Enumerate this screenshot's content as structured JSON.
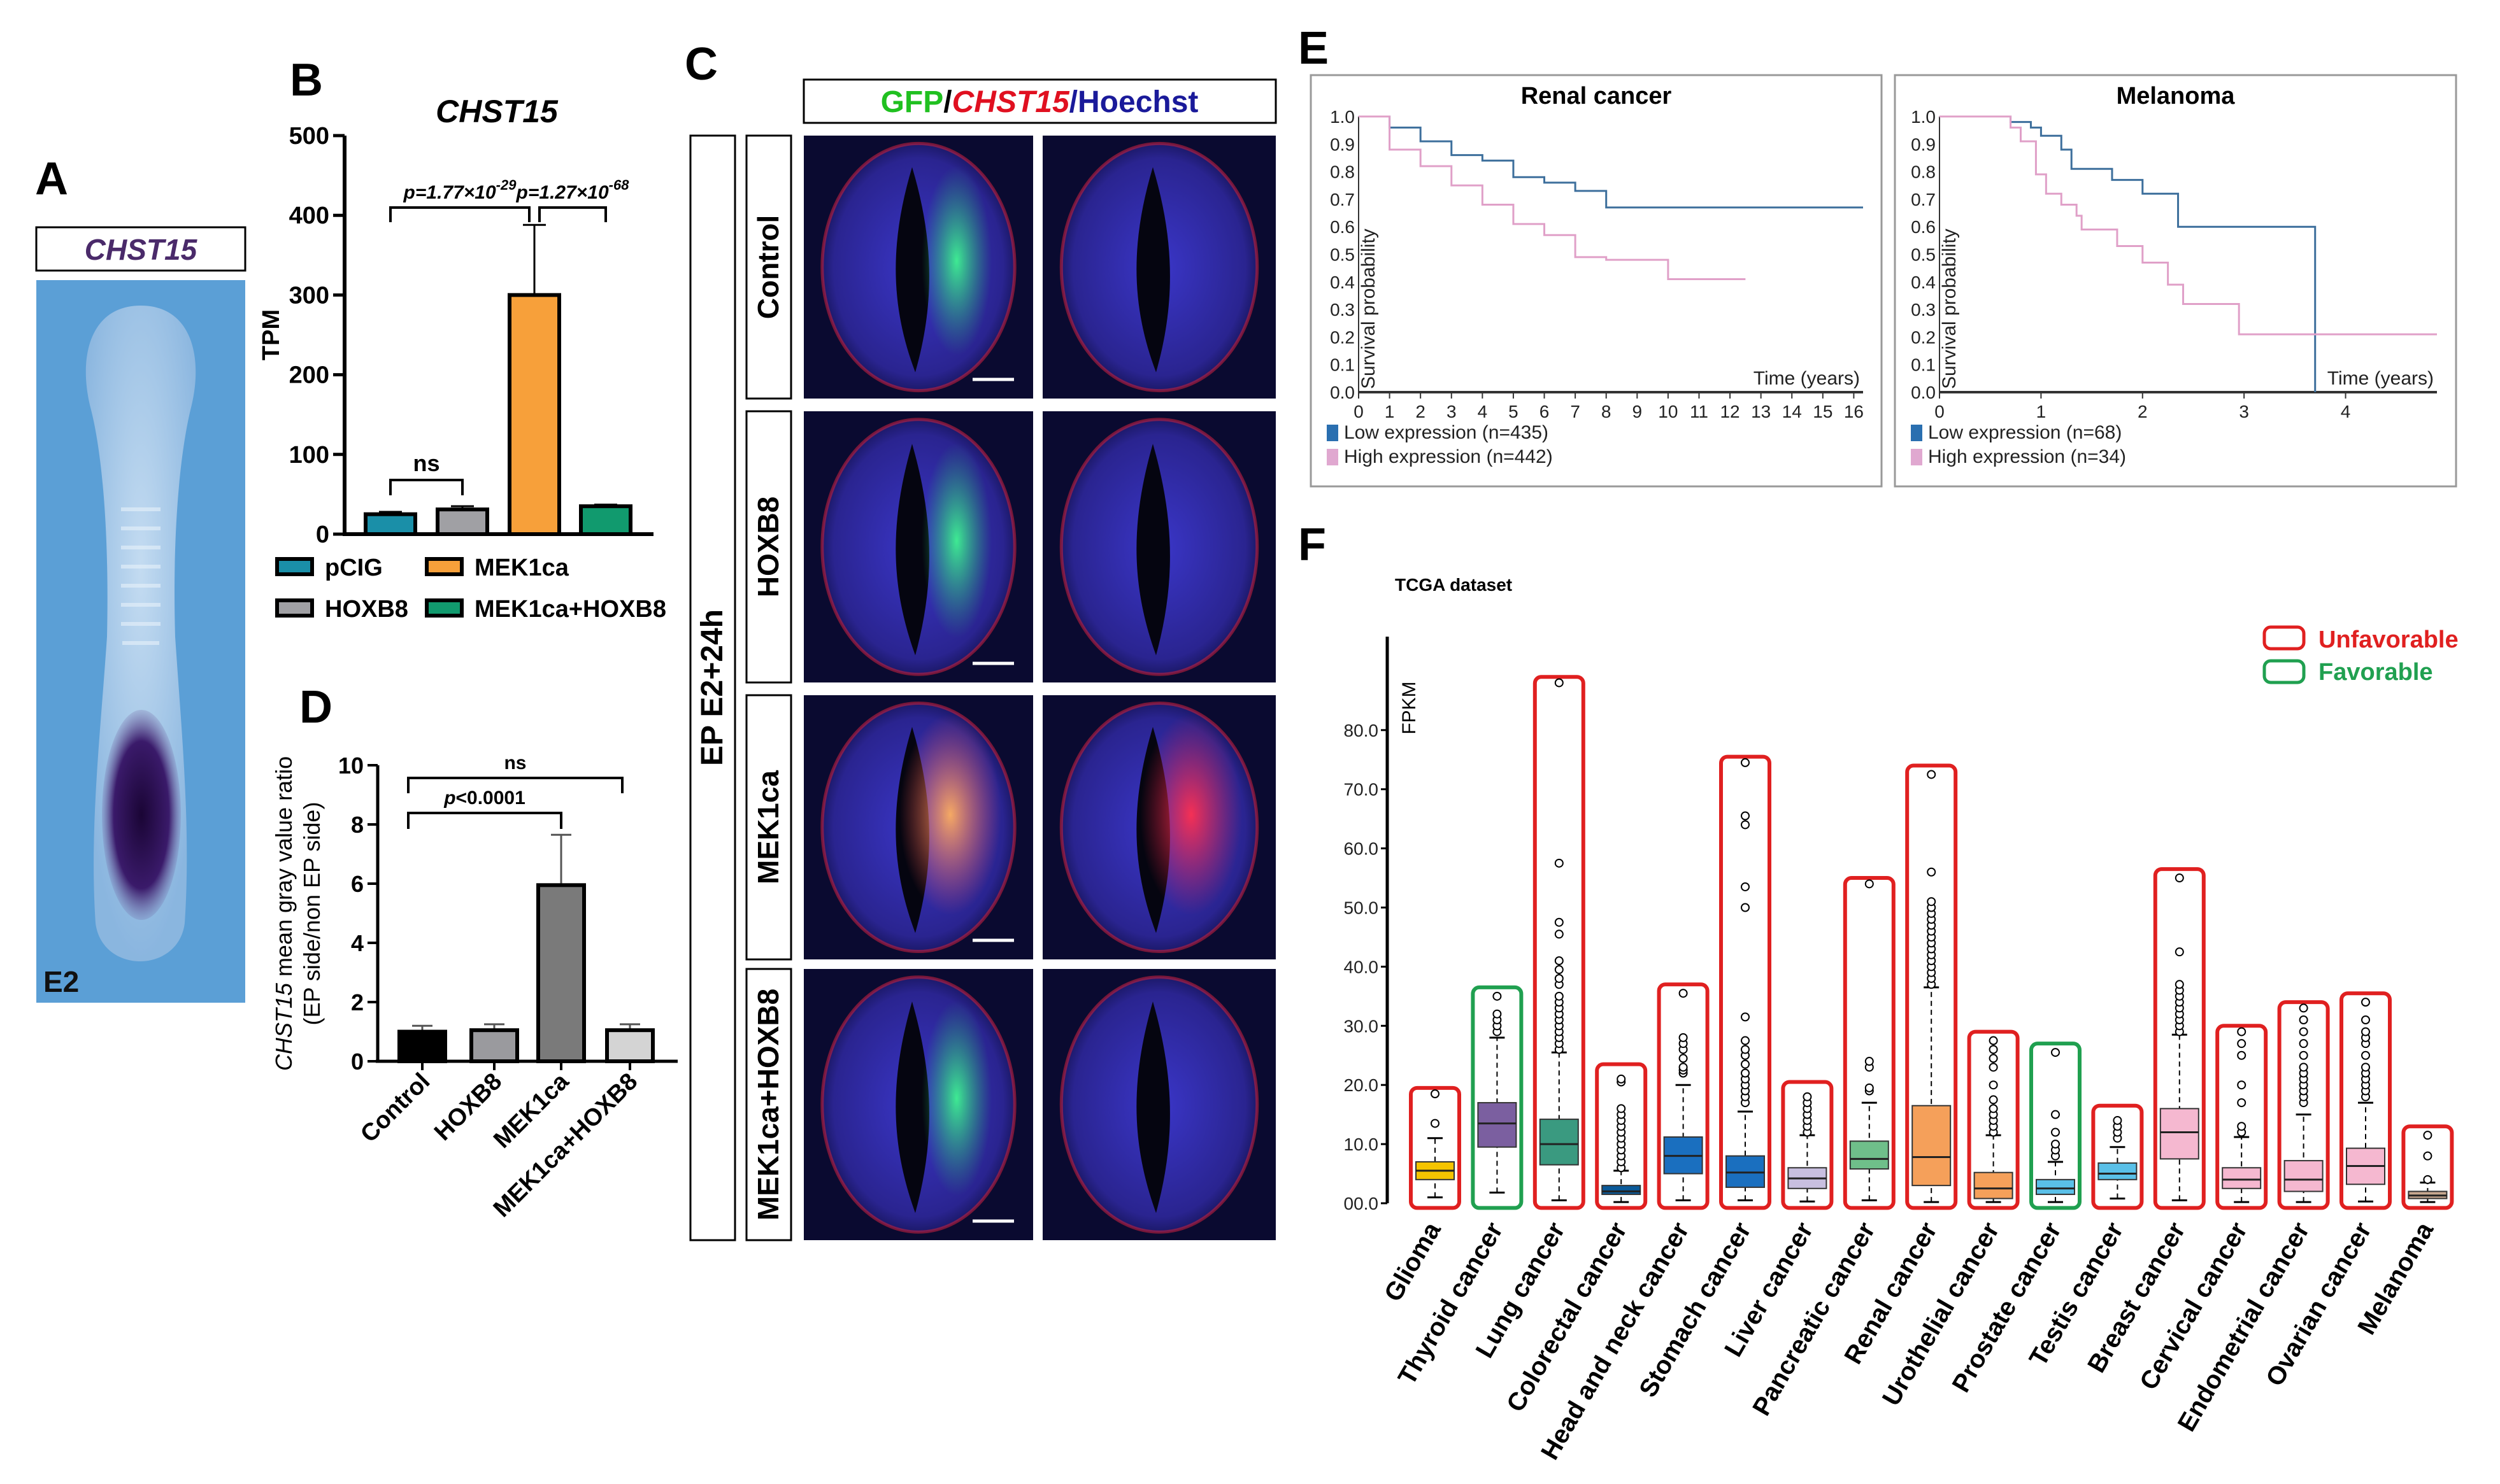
{
  "panel_labels": {
    "a": "A",
    "b": "B",
    "c": "C",
    "d": "D",
    "e": "E",
    "f": "F"
  },
  "panel_a": {
    "title": "CHST15",
    "stage": "E2",
    "colors": {
      "background": "#5b9fd6",
      "embryo": "#a9cbe9",
      "stain": "#2a1050",
      "title": "#4a2a6a"
    }
  },
  "panel_c": {
    "header": {
      "gfp": "GFP",
      "sep1": "/",
      "chst15": "CHST15",
      "hoechst": "/Hoechst"
    },
    "side_label": "EP E2+24h",
    "rows": [
      "Control",
      "HOXB8",
      "MEK1ca",
      "MEK1ca+HOXB8"
    ]
  },
  "chart_data": [
    {
      "id": "B",
      "type": "bar",
      "title": "CHST15",
      "ylabel": "TPM",
      "ylim": [
        0,
        500
      ],
      "yticks": [
        "0",
        "100",
        "200",
        "300",
        "400",
        "500"
      ],
      "categories": [
        "pCIG",
        "HOXB8",
        "MEK1ca",
        "MEK1ca+HOXB8"
      ],
      "values": [
        25,
        31,
        300,
        35
      ],
      "errors": [
        3,
        4,
        88,
        2
      ],
      "colors": [
        "#1a8fa8",
        "#a0a0a4",
        "#f7a03a",
        "#119a6e"
      ],
      "annotations": [
        {
          "p": "p",
          "text": "=1.77×10",
          "exp": "-29",
          "from": 0,
          "to": 2
        },
        {
          "p": "p",
          "text": "=1.27×10",
          "exp": "-68",
          "from": 2,
          "to": 3
        },
        {
          "p": "",
          "text": "ns",
          "exp": "",
          "from": 0,
          "to": 1
        }
      ],
      "legend": [
        "pCIG",
        "MEK1ca",
        "HOXB8",
        "MEK1ca+HOXB8"
      ]
    },
    {
      "id": "D",
      "type": "bar",
      "ylabel_gene": "CHST15",
      "ylabel_rest": " mean gray value ratio",
      "ylabel_line2": "(EP side/non EP side)",
      "ylim": [
        0,
        10
      ],
      "yticks": [
        "0",
        "2",
        "4",
        "6",
        "8",
        "10"
      ],
      "categories": [
        "Control",
        "HOXB8",
        "MEK1ca",
        "MEK1ca+HOXB8"
      ],
      "values": [
        1.0,
        1.05,
        5.95,
        1.05
      ],
      "errors": [
        0.2,
        0.2,
        1.7,
        0.2
      ],
      "colors": [
        "#000000",
        "#9a9a9e",
        "#7a7a7a",
        "#d4d4d4"
      ],
      "annotations": [
        {
          "p": "p",
          "text": "<0.0001",
          "from": 0,
          "to": 2
        },
        {
          "p": "",
          "text": "ns",
          "from": 0,
          "to": 3
        }
      ]
    },
    {
      "id": "E1",
      "type": "line",
      "title": "Renal cancer",
      "ylabel": "Survival probability",
      "xlabel": "Time (years)",
      "xlim": [
        0,
        16.3
      ],
      "ylim": [
        0,
        1
      ],
      "xticks": [
        "0",
        "1",
        "2",
        "3",
        "4",
        "5",
        "6",
        "7",
        "8",
        "9",
        "10",
        "11",
        "12",
        "13",
        "14",
        "15",
        "16"
      ],
      "yticks": [
        "0.0",
        "0.1",
        "0.2",
        "0.3",
        "0.4",
        "0.5",
        "0.6",
        "0.7",
        "0.8",
        "0.9",
        "1.0"
      ],
      "series": [
        {
          "name": "Low expression (n=435)",
          "color": "#3d6f9c",
          "swatch": "#2a6fb0",
          "points": [
            [
              0,
              1
            ],
            [
              1,
              0.96
            ],
            [
              2,
              0.91
            ],
            [
              3,
              0.86
            ],
            [
              4,
              0.84
            ],
            [
              5,
              0.78
            ],
            [
              6,
              0.76
            ],
            [
              7,
              0.73
            ],
            [
              8,
              0.67
            ],
            [
              16.3,
              0.67
            ]
          ]
        },
        {
          "name": "High expression (n=442)",
          "color": "#e0a0c8",
          "swatch": "#e0a8d0",
          "points": [
            [
              0,
              1
            ],
            [
              1,
              0.88
            ],
            [
              2,
              0.82
            ],
            [
              3,
              0.75
            ],
            [
              4,
              0.68
            ],
            [
              5,
              0.61
            ],
            [
              6,
              0.57
            ],
            [
              7,
              0.49
            ],
            [
              8,
              0.48
            ],
            [
              9.8,
              0.48
            ],
            [
              10,
              0.41
            ],
            [
              12.5,
              0.41
            ]
          ]
        }
      ]
    },
    {
      "id": "E2",
      "type": "line",
      "title": "Melanoma",
      "ylabel": "Survival probability",
      "xlabel": "Time (years)",
      "xlim": [
        0,
        4.9
      ],
      "ylim": [
        0,
        1
      ],
      "xticks": [
        "0",
        "1",
        "2",
        "3",
        "4"
      ],
      "yticks": [
        "0.0",
        "0.1",
        "0.2",
        "0.3",
        "0.4",
        "0.5",
        "0.6",
        "0.7",
        "0.8",
        "0.9",
        "1.0"
      ],
      "series": [
        {
          "name": "Low expression (n=68)",
          "color": "#3d6f9c",
          "swatch": "#2a6fb0",
          "points": [
            [
              0,
              1
            ],
            [
              0.5,
              1
            ],
            [
              0.7,
              0.98
            ],
            [
              0.9,
              0.96
            ],
            [
              1,
              0.93
            ],
            [
              1.2,
              0.88
            ],
            [
              1.3,
              0.81
            ],
            [
              1.7,
              0.77
            ],
            [
              2,
              0.72
            ],
            [
              2.35,
              0.6
            ],
            [
              3.7,
              0.6
            ],
            [
              3.7,
              0
            ]
          ]
        },
        {
          "name": "High expression (n=34)",
          "color": "#e0a0c8",
          "swatch": "#e0a8d0",
          "points": [
            [
              0,
              1
            ],
            [
              0.5,
              1
            ],
            [
              0.7,
              0.96
            ],
            [
              0.8,
              0.91
            ],
            [
              0.95,
              0.79
            ],
            [
              1.05,
              0.72
            ],
            [
              1.2,
              0.68
            ],
            [
              1.35,
              0.64
            ],
            [
              1.4,
              0.59
            ],
            [
              1.75,
              0.53
            ],
            [
              2,
              0.47
            ],
            [
              2.25,
              0.39
            ],
            [
              2.4,
              0.32
            ],
            [
              2.95,
              0.21
            ],
            [
              4.9,
              0.21
            ]
          ]
        }
      ]
    },
    {
      "id": "F",
      "type": "box",
      "title": "TCGA dataset",
      "ylabel": "FPKM",
      "ylim": [
        0,
        88
      ],
      "yticks": [
        "00.0",
        "10.0",
        "20.0",
        "30.0",
        "40.0",
        "50.0",
        "60.0",
        "70.0",
        "80.0"
      ],
      "legend": {
        "unfavorable": "Unfavorable",
        "favorable": "Favorable",
        "unfavorable_color": "#e02020",
        "favorable_color": "#20a050"
      },
      "boxes": [
        {
          "name": "Glioma",
          "q1": 4,
          "median": 5.5,
          "q3": 7,
          "low": 1,
          "high": 11,
          "outliers": [
            13.5,
            18.5
          ],
          "max": 19.5,
          "color": "#f5c400",
          "prognosis": "unfavorable"
        },
        {
          "name": "Thyroid cancer",
          "q1": 9.5,
          "median": 13.5,
          "q3": 17,
          "low": 1.8,
          "high": 28,
          "outliers": [
            29,
            30,
            31,
            32,
            35
          ],
          "max": 36.5,
          "color": "#7b5fa0",
          "prognosis": "favorable"
        },
        {
          "name": "Lung cancer",
          "q1": 6.5,
          "median": 10,
          "q3": 14.2,
          "low": 0.5,
          "high": 25.5,
          "outliers": [
            26,
            27,
            28,
            29,
            30,
            31,
            32,
            33,
            34,
            35,
            37,
            38,
            39.5,
            41,
            45.5,
            47.5,
            57.5,
            88
          ],
          "max": 89,
          "color": "#3a9a80",
          "prognosis": "unfavorable"
        },
        {
          "name": "Colorectal cancer",
          "q1": 1.5,
          "median": 2,
          "q3": 3,
          "low": 0.2,
          "high": 5.5,
          "outliers": [
            6,
            7,
            8,
            9,
            10,
            11,
            12,
            13,
            14,
            15,
            16,
            20.5,
            21
          ],
          "max": 23.5,
          "color": "#0a5a9a",
          "prognosis": "unfavorable"
        },
        {
          "name": "Head and neck cancer",
          "q1": 5,
          "median": 8,
          "q3": 11.2,
          "low": 0.5,
          "high": 20,
          "outliers": [
            22,
            22.5,
            23,
            24.5,
            26,
            27,
            28,
            35.5
          ],
          "max": 37,
          "color": "#1a6fbf",
          "prognosis": "unfavorable"
        },
        {
          "name": "Stomach cancer",
          "q1": 2.7,
          "median": 5.2,
          "q3": 8,
          "low": 0.5,
          "high": 15.5,
          "outliers": [
            17,
            18,
            19,
            20,
            21,
            22,
            23.5,
            25,
            26,
            27.5,
            31.5,
            50,
            53.5,
            64,
            65.5,
            74.5
          ],
          "max": 75.5,
          "color": "#1a6fbf",
          "prognosis": "unfavorable"
        },
        {
          "name": "Liver cancer",
          "q1": 2.5,
          "median": 4.2,
          "q3": 6,
          "low": 0.3,
          "high": 11.5,
          "outliers": [
            12,
            13,
            14,
            15,
            16,
            17,
            18
          ],
          "max": 20.5,
          "color": "#c8bfe0",
          "prognosis": "unfavorable"
        },
        {
          "name": "Pancreatic cancer",
          "q1": 5.8,
          "median": 7.5,
          "q3": 10.5,
          "low": 0.5,
          "high": 17,
          "outliers": [
            19,
            19.5,
            23,
            24,
            54
          ],
          "max": 55,
          "color": "#6fbf8a",
          "prognosis": "unfavorable"
        },
        {
          "name": "Renal cancer",
          "q1": 3,
          "median": 7.8,
          "q3": 16.5,
          "low": 0.2,
          "high": 36.5,
          "outliers": [
            37,
            38,
            39,
            40,
            41,
            42,
            43,
            44,
            45,
            46,
            47,
            48,
            49,
            50,
            51,
            56,
            72.5
          ],
          "max": 74,
          "color": "#f5a05a",
          "prognosis": "unfavorable"
        },
        {
          "name": "Urothelial cancer",
          "q1": 0.8,
          "median": 2.5,
          "q3": 5.2,
          "low": 0.2,
          "high": 11.5,
          "outliers": [
            12,
            13,
            14,
            15,
            16,
            17.5,
            20,
            23,
            24.5,
            26,
            27.5
          ],
          "max": 29,
          "color": "#f5a05a",
          "prognosis": "unfavorable"
        },
        {
          "name": "Prostate cancer",
          "q1": 1.5,
          "median": 2.5,
          "q3": 4,
          "low": 0.2,
          "high": 7,
          "outliers": [
            8,
            9,
            10,
            12,
            15,
            25.5
          ],
          "max": 27,
          "color": "#5ac0e8",
          "prognosis": "favorable"
        },
        {
          "name": "Testis cancer",
          "q1": 4,
          "median": 5,
          "q3": 6.8,
          "low": 0.8,
          "high": 9.5,
          "outliers": [
            11,
            12,
            13,
            14
          ],
          "max": 16.5,
          "color": "#5ac0e8",
          "prognosis": "unfavorable"
        },
        {
          "name": "Breast cancer",
          "q1": 7.5,
          "median": 12,
          "q3": 16,
          "low": 0.5,
          "high": 28.5,
          "outliers": [
            29,
            30,
            31,
            32,
            33,
            34,
            35,
            36,
            37,
            42.5,
            55
          ],
          "max": 56.5,
          "color": "#f5b8d0",
          "prognosis": "unfavorable"
        },
        {
          "name": "Cervical cancer",
          "q1": 2.5,
          "median": 4,
          "q3": 6,
          "low": 0.2,
          "high": 11.2,
          "outliers": [
            12,
            13,
            17,
            20,
            25,
            27,
            29
          ],
          "max": 30,
          "color": "#f5b8d0",
          "prognosis": "unfavorable"
        },
        {
          "name": "Endometrial cancer",
          "q1": 2,
          "median": 4,
          "q3": 7.2,
          "low": 0.2,
          "high": 15,
          "outliers": [
            17,
            18,
            19,
            20,
            21,
            22,
            23,
            25,
            27,
            29,
            31,
            33
          ],
          "max": 34,
          "color": "#f5b8d0",
          "prognosis": "unfavorable"
        },
        {
          "name": "Ovarian cancer",
          "q1": 3.2,
          "median": 6.3,
          "q3": 9.3,
          "low": 0.3,
          "high": 17,
          "outliers": [
            18,
            19,
            20,
            21,
            22,
            23,
            25,
            27,
            28,
            29,
            31,
            34
          ],
          "max": 35.5,
          "color": "#f5b8d0",
          "prognosis": "unfavorable"
        },
        {
          "name": "Melanoma",
          "q1": 0.8,
          "median": 1.3,
          "q3": 2,
          "low": 0.2,
          "high": 3.5,
          "outliers": [
            4,
            8,
            11.5
          ],
          "max": 13,
          "color": "#c8a890",
          "prognosis": "unfavorable"
        }
      ]
    }
  ]
}
